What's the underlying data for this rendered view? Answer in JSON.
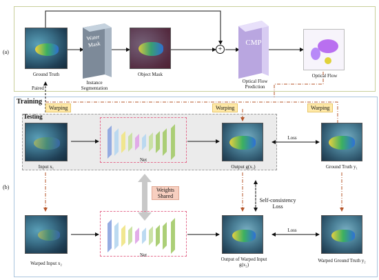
{
  "panel_labels": {
    "a": "(a)",
    "b": "(b)"
  },
  "top_row": {
    "ground_truth": "Ground Truth",
    "paired": "Paired",
    "water_mask_box": "Water Mask",
    "instance_segmentation": "Instance Segmentation",
    "object_mask": "Object Mask",
    "cmp_box": "CMP",
    "optical_flow_prediction": "Optical Flow Prediction",
    "optical_flow": "Optical Flow",
    "plus": "+"
  },
  "sections": {
    "training": "Training",
    "testing": "Testing"
  },
  "warping_tags": [
    "Warping",
    "Warping",
    "Warping"
  ],
  "nodes": {
    "input_x1": "Input x₁",
    "net_top": "Net",
    "output_gx1": "Output g(x₁)",
    "ground_truth_y1": "Ground Truth y₁",
    "warped_input_x2": "Warped Input x₂",
    "net_bottom": "Net",
    "output_gx2": "Output of Warped Input g(x₂)",
    "warped_ground_truth_y2": "Warped Ground Truth y₂"
  },
  "weights_shared": "Weights Shared",
  "losses": {
    "loss_top": "Loss",
    "self_consistency": "Self-consistency Loss",
    "loss_bottom": "Loss"
  },
  "colors": {
    "panel_a_border": "#c9cf9a",
    "panel_b_border": "#a9c4de",
    "tag_fill": "#ffe9a8",
    "net_border": "#e46a8c",
    "dashdot_arrow": "#b5552a"
  }
}
